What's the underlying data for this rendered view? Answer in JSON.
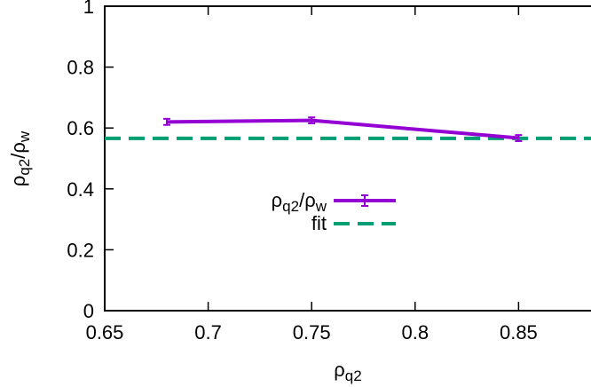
{
  "chart_data": {
    "type": "line",
    "xlabel": [
      "ρ",
      "q2"
    ],
    "ylabel": [
      "ρ",
      "q2",
      "/ρ",
      "w"
    ],
    "x": [
      0.68,
      0.75,
      0.85
    ],
    "series": [
      {
        "name": [
          "ρ",
          "q2",
          "/ρ",
          "w"
        ],
        "color": "#9400d3",
        "values": [
          0.62,
          0.625,
          0.567
        ],
        "errors": [
          0.01,
          0.01,
          0.01
        ]
      }
    ],
    "fit": {
      "name": "fit",
      "value": 0.566,
      "color": "#009e73"
    },
    "xlim": [
      0.65,
      0.885
    ],
    "ylim": [
      0,
      1
    ],
    "xticks": [
      0.65,
      0.7,
      0.75,
      0.8,
      0.85
    ],
    "yticks": [
      0,
      0.2,
      0.4,
      0.6,
      0.8,
      1
    ]
  }
}
